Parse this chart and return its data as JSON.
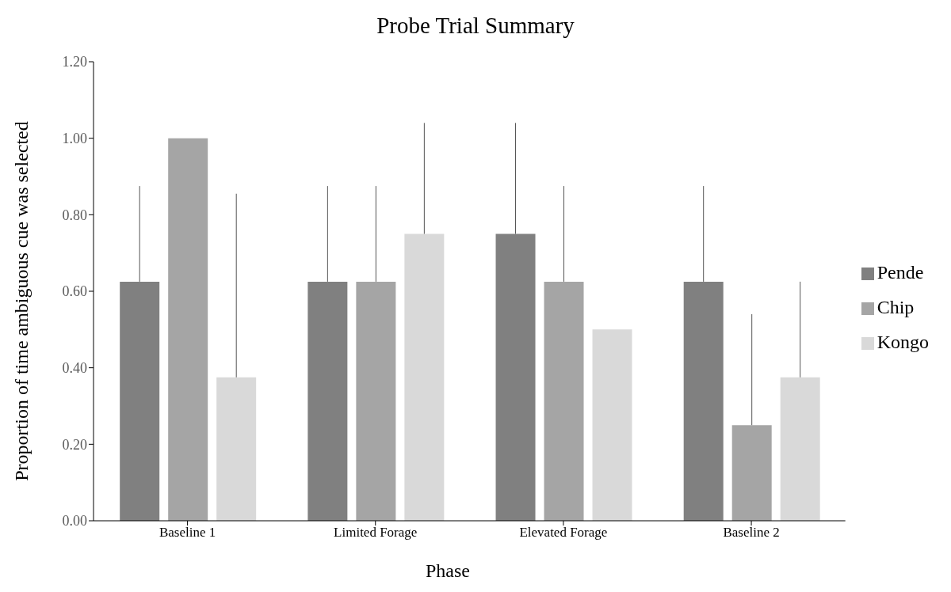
{
  "chart_data": {
    "type": "bar",
    "title": "Probe Trial Summary",
    "xlabel": "Phase",
    "ylabel": "Proportion of time ambiguous cue was selected",
    "categories": [
      "Baseline 1",
      "Limited Forage",
      "Elevated Forage",
      "Baseline 2"
    ],
    "series": [
      {
        "name": "Pende",
        "color": "#808080",
        "values": [
          0.625,
          0.625,
          0.75,
          0.625
        ],
        "errors": [
          [
            0.625,
            0.875
          ],
          [
            0.625,
            0.875
          ],
          [
            0.75,
            1.04
          ],
          [
            0.625,
            0.875
          ]
        ]
      },
      {
        "name": "Chip",
        "color": "#a5a5a5",
        "values": [
          1.0,
          0.625,
          0.625,
          0.25
        ],
        "errors": [
          [
            1.0,
            1.0
          ],
          [
            0.625,
            0.875
          ],
          [
            0.625,
            0.875
          ],
          [
            0.25,
            0.54
          ]
        ]
      },
      {
        "name": "Kongo",
        "color": "#d9d9d9",
        "values": [
          0.375,
          0.75,
          0.5,
          0.375
        ],
        "errors": [
          [
            0.375,
            0.855
          ],
          [
            0.75,
            1.04
          ],
          null,
          [
            0.375,
            0.625
          ]
        ]
      }
    ],
    "ylim": [
      0,
      1.2
    ],
    "yticks": [
      {
        "value": 0,
        "label": "0.00"
      },
      {
        "value": 0.2,
        "label": "0.20"
      },
      {
        "value": 0.4,
        "label": "0.40"
      },
      {
        "value": 0.6,
        "label": "0.60"
      },
      {
        "value": 0.8,
        "label": "0.80"
      },
      {
        "value": 1.0,
        "label": "1.00"
      },
      {
        "value": 1.2,
        "label": "1.20"
      }
    ],
    "grid": false,
    "legend": "right"
  }
}
